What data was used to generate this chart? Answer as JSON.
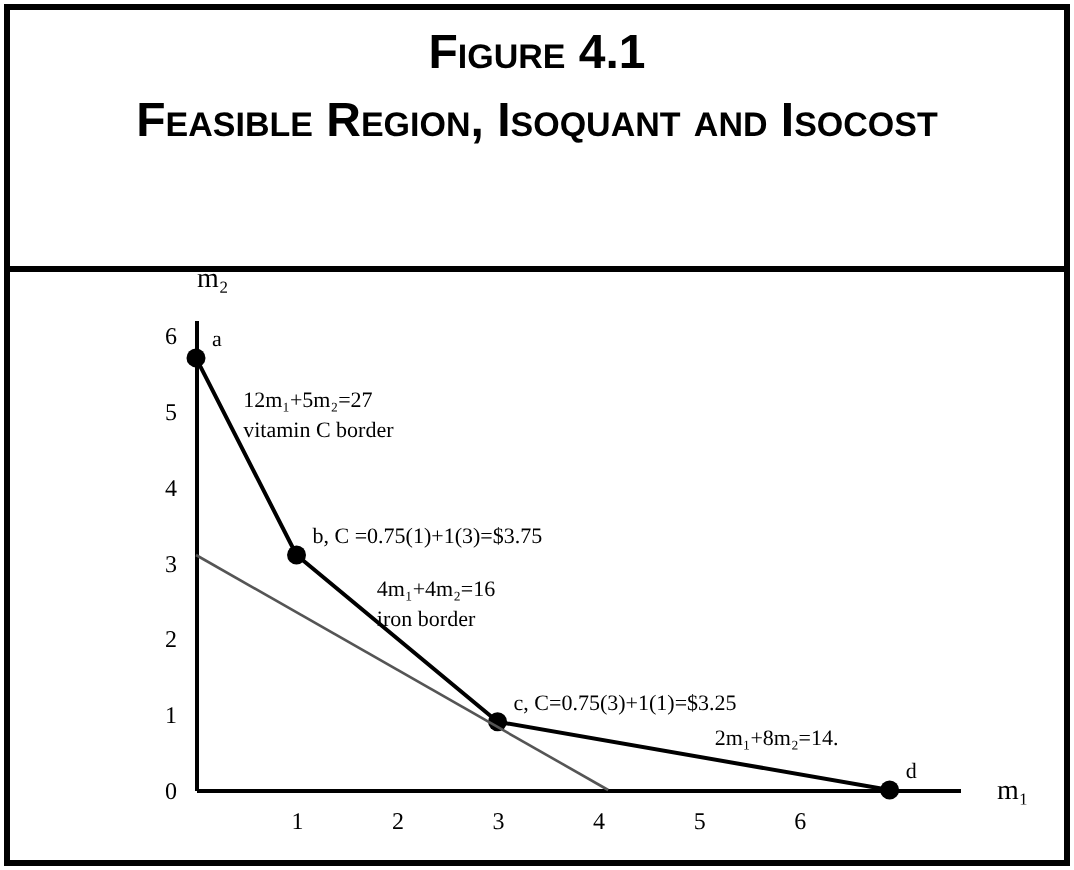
{
  "chart_data": {
    "type": "line",
    "title": "Figure 4.1",
    "subtitle": "Feasible Region, Isoquant and Isocost",
    "xlabel": "m₁",
    "ylabel": "m₂",
    "x": [
      0,
      1,
      3,
      6.9
    ],
    "series": [
      {
        "color": "#000000",
        "values": [
          5.7,
          3.1,
          0.9,
          0
        ],
        "marker": "circle"
      },
      {
        "color": "#555555",
        "x": [
          0,
          4.1
        ],
        "values": [
          3.1,
          0
        ],
        "marker": "none"
      }
    ],
    "xlim": [
      0,
      7.6
    ],
    "ylim": [
      0,
      6.2
    ],
    "xticks": [
      1,
      2,
      3,
      4,
      5,
      6
    ],
    "yticks": [
      0,
      1,
      2,
      3,
      4,
      5,
      6
    ],
    "grid": false,
    "annotations": [
      {
        "text": "a",
        "x": 0,
        "y": 5.7
      },
      {
        "text": "12m₁+5m₂=27",
        "x": 0.31,
        "y": 4.9
      },
      {
        "text": "vitamin C border",
        "x": 0.31,
        "y": 4.9
      },
      {
        "text": "b,  C =0.75(1)+1(3)=$3.75",
        "x": 1,
        "y": 3.1
      },
      {
        "text": "4m₁+4m₂=16",
        "x": 1.64,
        "y": 2.4
      },
      {
        "text": "iron border",
        "x": 1.64,
        "y": 2.4
      },
      {
        "text": "c, C=0.75(3)+1(1)=$3.25",
        "x": 3,
        "y": 0.9
      },
      {
        "text": "2m₁+8m₂=14.",
        "x": 5,
        "y": 0.44
      },
      {
        "text": "d",
        "x": 6.9,
        "y": 0
      }
    ]
  }
}
